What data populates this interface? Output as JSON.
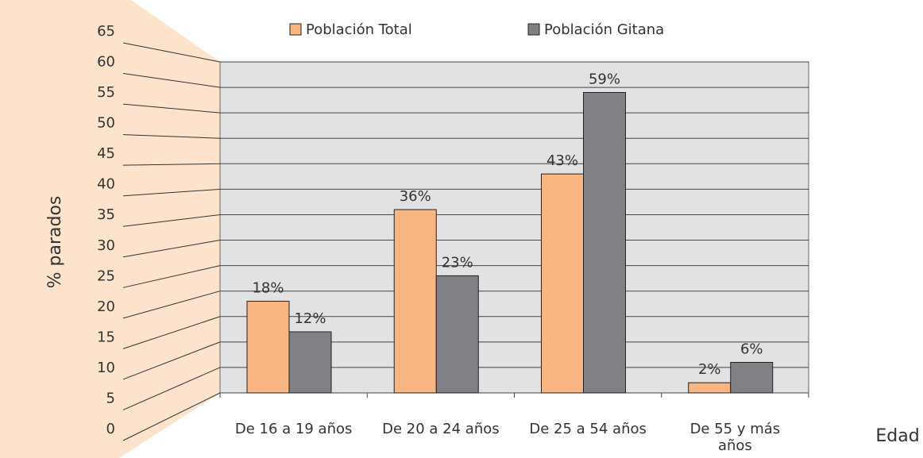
{
  "chart_data": {
    "type": "bar",
    "y_label": "% parados",
    "x_label": "Edad",
    "categories": [
      "De 16 a 19 años",
      "De 20 a 24 años",
      "De 25 a 54 años",
      "De 55 y más años"
    ],
    "series": [
      {
        "name": "Población Total",
        "color": "#f9b682",
        "values": [
          18,
          36,
          43,
          2
        ],
        "value_labels": [
          "18%",
          "36%",
          "43%",
          "2%"
        ]
      },
      {
        "name": "Población Gitana",
        "color": "#808085",
        "values": [
          12,
          23,
          59,
          6
        ],
        "value_labels": [
          "12%",
          "23%",
          "59%",
          "6%"
        ]
      }
    ],
    "ylim": [
      0,
      65
    ],
    "yticks": [
      0,
      5,
      10,
      15,
      20,
      25,
      30,
      35,
      40,
      45,
      50,
      55,
      60,
      65
    ],
    "grid": true
  }
}
